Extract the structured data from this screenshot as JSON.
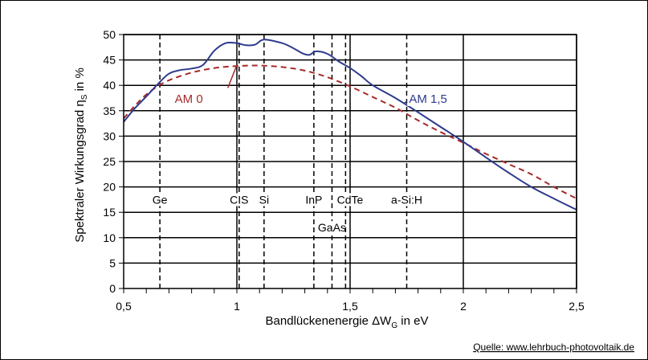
{
  "chart_data": {
    "type": "line",
    "xlabel": "Bandlückenenergie ΔW",
    "xlabel_sub": "G",
    "xlabel_unit": " in eV",
    "ylabel": "Spektraler Wirkungsgrad η",
    "ylabel_sub": "S",
    "ylabel_unit": " in %",
    "xlim": [
      0.5,
      2.5
    ],
    "ylim": [
      0,
      50
    ],
    "x_ticks": [
      {
        "v": 0.5,
        "label": "0,5"
      },
      {
        "v": 1.0,
        "label": "1"
      },
      {
        "v": 1.5,
        "label": "1,5"
      },
      {
        "v": 2.0,
        "label": "2"
      },
      {
        "v": 2.5,
        "label": "2,5"
      }
    ],
    "y_ticks": [
      {
        "v": 0,
        "label": "0"
      },
      {
        "v": 5,
        "label": "5"
      },
      {
        "v": 10,
        "label": "10"
      },
      {
        "v": 15,
        "label": "15"
      },
      {
        "v": 20,
        "label": "20"
      },
      {
        "v": 25,
        "label": "25"
      },
      {
        "v": 30,
        "label": "30"
      },
      {
        "v": 35,
        "label": "35"
      },
      {
        "v": 40,
        "label": "40"
      },
      {
        "v": 45,
        "label": "45"
      },
      {
        "v": 50,
        "label": "50"
      }
    ],
    "grid": true,
    "series": [
      {
        "name": "AM 0",
        "color": "#a52a2a",
        "dash": true,
        "label_at": {
          "x": 0.85,
          "y": 37.5
        },
        "pointer": [
          [
            0.96,
            39.5
          ],
          [
            1.0,
            44
          ]
        ],
        "points": [
          [
            0.5,
            33.5
          ],
          [
            0.55,
            36
          ],
          [
            0.6,
            38.2
          ],
          [
            0.65,
            39.8
          ],
          [
            0.7,
            41.0
          ],
          [
            0.8,
            42.5
          ],
          [
            0.9,
            43.4
          ],
          [
            1.0,
            43.8
          ],
          [
            1.1,
            43.9
          ],
          [
            1.2,
            43.6
          ],
          [
            1.3,
            42.9
          ],
          [
            1.4,
            41.6
          ],
          [
            1.5,
            39.8
          ],
          [
            1.6,
            37.7
          ],
          [
            1.7,
            35.6
          ],
          [
            1.8,
            33.1
          ],
          [
            1.9,
            30.8
          ],
          [
            2.0,
            28.7
          ],
          [
            2.1,
            26.5
          ],
          [
            2.2,
            24.5
          ],
          [
            2.3,
            22.5
          ],
          [
            2.4,
            20.0
          ],
          [
            2.5,
            17.7
          ]
        ]
      },
      {
        "name": "AM 1,5",
        "color": "#2e3a8c",
        "dash": false,
        "label_at": {
          "x": 1.76,
          "y": 37.5
        },
        "pointer": [
          [
            1.74,
            36.5
          ],
          [
            1.78,
            38
          ]
        ],
        "points": [
          [
            0.5,
            32.8
          ],
          [
            0.55,
            35.5
          ],
          [
            0.6,
            37.8
          ],
          [
            0.65,
            40.2
          ],
          [
            0.7,
            42.3
          ],
          [
            0.75,
            43.0
          ],
          [
            0.8,
            43.3
          ],
          [
            0.85,
            44.0
          ],
          [
            0.9,
            46.8
          ],
          [
            0.95,
            48.3
          ],
          [
            1.0,
            48.3
          ],
          [
            1.04,
            47.9
          ],
          [
            1.08,
            48.0
          ],
          [
            1.12,
            49.0
          ],
          [
            1.2,
            48.3
          ],
          [
            1.25,
            47.3
          ],
          [
            1.29,
            46.3
          ],
          [
            1.32,
            46.0
          ],
          [
            1.35,
            46.7
          ],
          [
            1.4,
            46.2
          ],
          [
            1.45,
            44.7
          ],
          [
            1.5,
            43.4
          ],
          [
            1.55,
            41.8
          ],
          [
            1.6,
            40.0
          ],
          [
            1.7,
            37.5
          ],
          [
            1.8,
            34.7
          ],
          [
            1.9,
            31.8
          ],
          [
            2.0,
            28.9
          ],
          [
            2.1,
            25.8
          ],
          [
            2.2,
            22.8
          ],
          [
            2.3,
            20.0
          ],
          [
            2.4,
            17.7
          ],
          [
            2.5,
            15.5
          ]
        ]
      }
    ],
    "materials": [
      {
        "name": "Ge",
        "x": 0.66,
        "label_x": 0.66,
        "row": 1
      },
      {
        "name": "CIS",
        "x": 1.01,
        "label_x": 1.01,
        "row": 1
      },
      {
        "name": "Si",
        "x": 1.12,
        "label_x": 1.12,
        "row": 1
      },
      {
        "name": "InP",
        "x": 1.34,
        "label_x": 1.34,
        "row": 1
      },
      {
        "name": "GaAs",
        "x": 1.42,
        "label_x": 1.42,
        "row": 2
      },
      {
        "name": "CdTe",
        "x": 1.48,
        "label_x": 1.5,
        "row": 1
      },
      {
        "name": "a-Si:H",
        "x": 1.75,
        "label_x": 1.75,
        "row": 1
      }
    ],
    "material_row1_y": 17.5,
    "material_row2_y": 12.0
  },
  "source": "Quelle: www.lehrbuch-photovoltaik.de"
}
